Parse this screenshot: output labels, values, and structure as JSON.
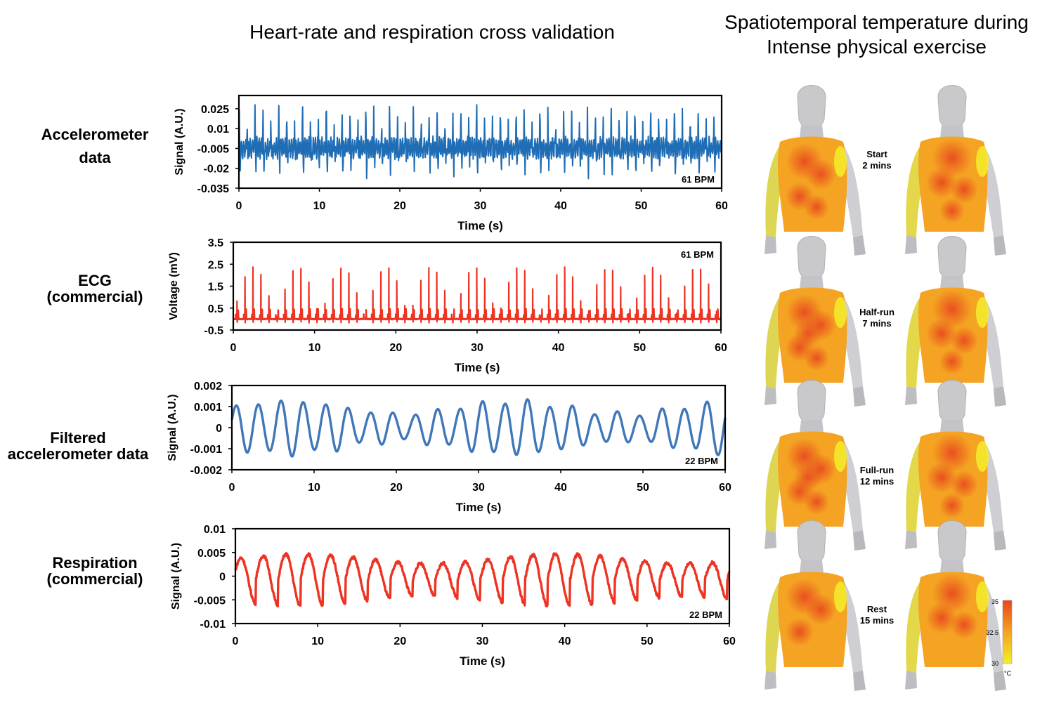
{
  "titles": {
    "left": "Heart-rate and respiration cross validation",
    "right_line1": "Spatiotemporal temperature during",
    "right_line2": "Intense physical exercise"
  },
  "row_labels": [
    [
      "Accelerometer",
      "data"
    ],
    [
      "ECG",
      "(commercial)"
    ],
    [
      "Filtered",
      "accelerometer data"
    ],
    [
      "Respiration",
      "(commercial)"
    ]
  ],
  "chart_data": [
    {
      "type": "line",
      "name": "accelerometer",
      "color": "#1f6db5",
      "xlabel": "Time (s)",
      "ylabel": "Signal (A.U.)",
      "xlim": [
        0,
        60
      ],
      "ylim": [
        -0.035,
        0.035
      ],
      "xticks": [
        "0",
        "10",
        "20",
        "30",
        "40",
        "50",
        "60"
      ],
      "yticks": [
        "0.025",
        "0.01",
        "-0.005",
        "-0.02",
        "-0.035"
      ],
      "annotation": "61 BPM",
      "rate_bpm": 61,
      "signal": "cardiac oscillation, range approx. -0.03 to 0.027"
    },
    {
      "type": "line",
      "name": "ecg",
      "color": "#ee3322",
      "xlabel": "Time (s)",
      "ylabel": "Voltage (mV)",
      "xlim": [
        0,
        60
      ],
      "ylim": [
        -0.5,
        3.5
      ],
      "xticks": [
        "0",
        "10",
        "20",
        "30",
        "40",
        "50",
        "60"
      ],
      "yticks": [
        "3.5",
        "2.5",
        "1.5",
        "0.5",
        "-0.5"
      ],
      "annotation": "61 BPM",
      "rate_bpm": 61,
      "signal": "R-peaks approx. 2.4 mV, baseline approx. 0"
    },
    {
      "type": "line",
      "name": "filtered_accelerometer",
      "color": "#3f77b9",
      "xlabel": "Time (s)",
      "ylabel": "Signal (A.U.)",
      "xlim": [
        0,
        60
      ],
      "ylim": [
        -0.002,
        0.002
      ],
      "xticks": [
        "0",
        "10",
        "20",
        "30",
        "40",
        "50",
        "60"
      ],
      "yticks": [
        "0.002",
        "0.001",
        "0",
        "-0.001",
        "-0.002"
      ],
      "annotation": "22 BPM",
      "rate_bpm": 22,
      "signal": "respiratory sinusoid, amplitude approx. 0.001"
    },
    {
      "type": "line",
      "name": "respiration",
      "color": "#ee3322",
      "xlabel": "Time (s)",
      "ylabel": "Signal (A.U.)",
      "xlim": [
        0,
        60
      ],
      "ylim": [
        -0.01,
        0.01
      ],
      "xticks": [
        "0",
        "10",
        "20",
        "30",
        "40",
        "50",
        "60"
      ],
      "yticks": [
        "0.01",
        "0.005",
        "0",
        "-0.005",
        "-0.01"
      ],
      "annotation": "22 BPM",
      "rate_bpm": 22,
      "signal": "respiratory wave, amplitude approx. 0.005"
    }
  ],
  "stages": [
    [
      "Start",
      "2 mins"
    ],
    [
      "Half-run",
      "7 mins"
    ],
    [
      "Full-run",
      "12 mins"
    ],
    [
      "Rest",
      "15 mins"
    ]
  ],
  "colorbar": {
    "max": "35",
    "mid": "32.5",
    "min": "30",
    "unit": "°C",
    "hot": "#e8461e",
    "warm": "#f4a322",
    "cool": "#f5ee2a"
  }
}
